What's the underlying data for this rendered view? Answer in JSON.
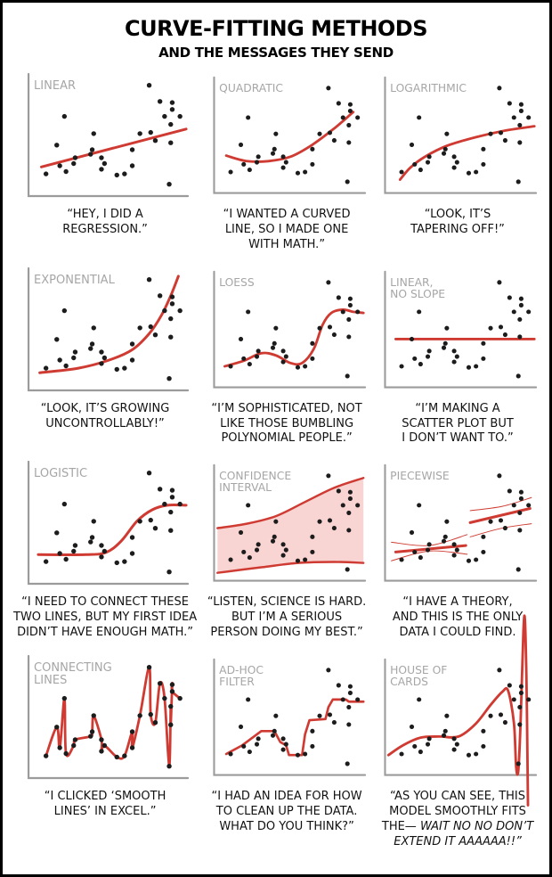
{
  "header": {
    "title": "CURVE-FITTING METHODS",
    "subtitle": "AND THE MESSAGES THEY SEND"
  },
  "colors": {
    "curve_red": "#cf3b32",
    "band_pink": "#f8d4d2",
    "dot_black": "#1c1c1c",
    "axis_gray": "#9b9b9b",
    "label_gray": "#a6a6a6",
    "text_black": "#111111"
  },
  "chart_data": {
    "type": "scatter",
    "x_range": [
      0,
      1
    ],
    "y_range": [
      0,
      1
    ],
    "grid": false,
    "shared_scatter_points": [
      [
        0.76,
        0.94
      ],
      [
        0.83,
        0.8
      ],
      [
        0.91,
        0.79
      ],
      [
        0.91,
        0.73
      ],
      [
        0.86,
        0.67
      ],
      [
        0.21,
        0.67
      ],
      [
        0.96,
        0.67
      ],
      [
        0.9,
        0.6
      ],
      [
        0.7,
        0.52
      ],
      [
        0.77,
        0.53
      ],
      [
        0.8,
        0.46
      ],
      [
        0.4,
        0.52
      ],
      [
        0.9,
        0.44
      ],
      [
        0.16,
        0.42
      ],
      [
        0.39,
        0.38
      ],
      [
        0.65,
        0.38
      ],
      [
        0.28,
        0.31
      ],
      [
        0.38,
        0.34
      ],
      [
        0.27,
        0.26
      ],
      [
        0.18,
        0.24
      ],
      [
        0.45,
        0.31
      ],
      [
        0.47,
        0.26
      ],
      [
        0.45,
        0.21
      ],
      [
        0.22,
        0.19
      ],
      [
        0.09,
        0.17
      ],
      [
        0.55,
        0.16
      ],
      [
        0.6,
        0.17
      ],
      [
        0.65,
        0.24
      ],
      [
        0.89,
        0.08
      ]
    ],
    "panels": [
      {
        "id": "linear",
        "label_lines": [
          "LINEAR"
        ],
        "caption": [
          [
            "“HEY, I DID A",
            ""
          ],
          [
            "REGRESSION.”",
            ""
          ]
        ],
        "curve": {
          "kind": "line",
          "points": [
            [
              0.06,
              0.23
            ],
            [
              1.0,
              0.56
            ]
          ]
        }
      },
      {
        "id": "quadratic",
        "label_lines": [
          "QUADRATIC"
        ],
        "caption": [
          [
            "“I WANTED A CURVED",
            ""
          ],
          [
            "LINE, SO I MADE ONE",
            ""
          ],
          [
            "WITH MATH.”",
            ""
          ]
        ],
        "curve": {
          "kind": "smooth",
          "points": [
            [
              0.06,
              0.32
            ],
            [
              0.2,
              0.27
            ],
            [
              0.35,
              0.27
            ],
            [
              0.5,
              0.31
            ],
            [
              0.65,
              0.42
            ],
            [
              0.8,
              0.57
            ],
            [
              0.93,
              0.72
            ]
          ]
        }
      },
      {
        "id": "logarithmic",
        "label_lines": [
          "LOGARITHMIC"
        ],
        "caption": [
          [
            "“LOOK, IT’S",
            ""
          ],
          [
            "TAPERING OFF!”",
            ""
          ]
        ],
        "curve": {
          "kind": "smooth",
          "points": [
            [
              0.08,
              0.1
            ],
            [
              0.15,
              0.21
            ],
            [
              0.25,
              0.31
            ],
            [
              0.4,
              0.41
            ],
            [
              0.6,
              0.49
            ],
            [
              0.8,
              0.55
            ],
            [
              1.0,
              0.59
            ]
          ]
        }
      },
      {
        "id": "exponential",
        "label_lines": [
          "EXPONENTIAL"
        ],
        "caption": [
          [
            "“LOOK, IT’S GROWING",
            ""
          ],
          [
            "UNCONTROLLABLY!”",
            ""
          ]
        ],
        "curve": {
          "kind": "smooth",
          "points": [
            [
              0.05,
              0.13
            ],
            [
              0.3,
              0.17
            ],
            [
              0.5,
              0.24
            ],
            [
              0.65,
              0.33
            ],
            [
              0.76,
              0.47
            ],
            [
              0.84,
              0.63
            ],
            [
              0.9,
              0.8
            ],
            [
              0.95,
              0.97
            ]
          ]
        }
      },
      {
        "id": "loess",
        "label_lines": [
          "LOESS"
        ],
        "caption": [
          [
            "“I’M SOPHISTICATED, NOT",
            ""
          ],
          [
            "LIKE THOSE BUMBLING",
            ""
          ],
          [
            "POLYNOMIAL PEOPLE.”",
            ""
          ]
        ],
        "curve": {
          "kind": "smooth",
          "points": [
            [
              0.05,
              0.17
            ],
            [
              0.18,
              0.22
            ],
            [
              0.3,
              0.29
            ],
            [
              0.4,
              0.27
            ],
            [
              0.5,
              0.2
            ],
            [
              0.58,
              0.2
            ],
            [
              0.66,
              0.33
            ],
            [
              0.72,
              0.55
            ],
            [
              0.78,
              0.66
            ],
            [
              0.86,
              0.69
            ],
            [
              0.93,
              0.67
            ],
            [
              1.0,
              0.66
            ]
          ]
        }
      },
      {
        "id": "linear-no-slope",
        "label_lines": [
          "LINEAR,",
          "NO SLOPE"
        ],
        "caption": [
          [
            "“I’M MAKING A",
            ""
          ],
          [
            "SCATTER PLOT BUT",
            ""
          ],
          [
            "I DON’T WANT TO.”",
            ""
          ]
        ],
        "curve": {
          "kind": "line",
          "points": [
            [
              0.05,
              0.42
            ],
            [
              1.0,
              0.42
            ]
          ]
        }
      },
      {
        "id": "logistic",
        "label_lines": [
          "LOGISTIC"
        ],
        "caption": [
          [
            "“I NEED TO CONNECT THESE",
            ""
          ],
          [
            "TWO LINES, BUT MY FIRST IDEA",
            ""
          ],
          [
            "DIDN’T HAVE ENOUGH MATH.”",
            ""
          ]
        ],
        "curve": {
          "kind": "smooth",
          "points": [
            [
              0.04,
              0.23
            ],
            [
              0.35,
              0.23
            ],
            [
              0.48,
              0.25
            ],
            [
              0.58,
              0.35
            ],
            [
              0.68,
              0.52
            ],
            [
              0.78,
              0.62
            ],
            [
              0.88,
              0.66
            ],
            [
              1.0,
              0.66
            ]
          ]
        }
      },
      {
        "id": "confidence-interval",
        "label_lines": [
          "CONFIDENCE",
          "INTERVAL"
        ],
        "caption": [
          [
            "“LISTEN, SCIENCE IS HARD.",
            ""
          ],
          [
            "BUT I’M A SERIOUS",
            ""
          ],
          [
            "PERSON DOING MY BEST.”",
            ""
          ]
        ],
        "curve": {
          "kind": "band",
          "upper": [
            [
              0.0,
              0.46
            ],
            [
              0.2,
              0.5
            ],
            [
              0.4,
              0.57
            ],
            [
              0.6,
              0.7
            ],
            [
              0.8,
              0.83
            ],
            [
              1.0,
              0.92
            ]
          ],
          "lower": [
            [
              0.0,
              0.05
            ],
            [
              0.3,
              0.1
            ],
            [
              0.55,
              0.14
            ],
            [
              0.8,
              0.15
            ],
            [
              1.0,
              0.14
            ]
          ]
        }
      },
      {
        "id": "piecewise",
        "label_lines": [
          "PIECEWISE"
        ],
        "caption": [
          [
            "“I HAVE A THEORY,",
            ""
          ],
          [
            "AND THIS IS THE ONLY",
            ""
          ],
          [
            "DATA I COULD FIND.",
            ""
          ]
        ],
        "curve": {
          "kind": "multi",
          "parts": [
            {
              "points": [
                [
                  0.05,
                  0.24
                ],
                [
                  0.53,
                  0.3
                ]
              ],
              "width": 3.2,
              "smooth": false
            },
            {
              "points": [
                [
                  0.56,
                  0.51
                ],
                [
                  0.97,
                  0.64
                ]
              ],
              "width": 3.2,
              "smooth": false
            },
            {
              "points": [
                [
                  0.02,
                  0.33
                ],
                [
                  0.28,
                  0.3
                ],
                [
                  0.54,
                  0.4
                ]
              ],
              "width": 1,
              "smooth": true
            },
            {
              "points": [
                [
                  0.02,
                  0.16
                ],
                [
                  0.28,
                  0.25
                ],
                [
                  0.54,
                  0.22
                ]
              ],
              "width": 1,
              "smooth": true
            },
            {
              "points": [
                [
                  0.56,
                  0.62
                ],
                [
                  0.78,
                  0.66
                ],
                [
                  0.98,
                  0.74
                ]
              ],
              "width": 1,
              "smooth": true
            },
            {
              "points": [
                [
                  0.56,
                  0.38
                ],
                [
                  0.78,
                  0.46
                ],
                [
                  0.98,
                  0.5
                ]
              ],
              "width": 1,
              "smooth": true
            }
          ]
        }
      },
      {
        "id": "connecting-lines",
        "label_lines": [
          "CONNECTING",
          "LINES"
        ],
        "caption": [
          [
            "“I CLICKED ‘SMOOTH",
            ""
          ],
          [
            "LINES’ IN EXCEL.”",
            ""
          ]
        ],
        "curve": {
          "kind": "through-data"
        }
      },
      {
        "id": "ad-hoc-filter",
        "label_lines": [
          "AD-HOC",
          "FILTER"
        ],
        "caption": [
          [
            "“I HAD AN IDEA FOR HOW",
            ""
          ],
          [
            "TO CLEAN UP THE DATA.",
            ""
          ],
          [
            "WHAT DO YOU THINK?”",
            ""
          ]
        ],
        "curve": {
          "kind": "multi",
          "parts": [
            {
              "points": [
                [
                  0.06,
                  0.17
                ],
                [
                  0.17,
                  0.25
                ],
                [
                  0.3,
                  0.38
                ],
                [
                  0.39,
                  0.38
                ],
                [
                  0.43,
                  0.28
                ],
                [
                  0.47,
                  0.25
                ],
                [
                  0.49,
                  0.16
                ],
                [
                  0.58,
                  0.16
                ],
                [
                  0.6,
                  0.35
                ],
                [
                  0.63,
                  0.48
                ],
                [
                  0.74,
                  0.49
                ],
                [
                  0.76,
                  0.6
                ],
                [
                  0.79,
                  0.67
                ],
                [
                  0.88,
                  0.67
                ],
                [
                  0.9,
                  0.65
                ],
                [
                  1.0,
                  0.65
                ]
              ],
              "width": 2.8,
              "smooth": false
            }
          ]
        }
      },
      {
        "id": "house-of-cards",
        "label_lines": [
          "HOUSE OF",
          "CARDS"
        ],
        "caption": [
          [
            "“AS YOU CAN SEE, THIS",
            ""
          ],
          [
            "MODEL SMOOTHLY FITS",
            ""
          ],
          [
            "THE— ",
            "WAIT NO NO DON’T"
          ],
          [
            "",
            "EXTEND IT AAAAAA!!”"
          ]
        ],
        "curve": {
          "kind": "smooth",
          "points": [
            [
              0.0,
              0.16
            ],
            [
              0.1,
              0.25
            ],
            [
              0.22,
              0.32
            ],
            [
              0.35,
              0.33
            ],
            [
              0.48,
              0.33
            ],
            [
              0.6,
              0.45
            ],
            [
              0.7,
              0.62
            ],
            [
              0.78,
              0.74
            ],
            [
              0.82,
              0.75
            ],
            [
              0.86,
              0.45
            ],
            [
              0.875,
              0.05
            ],
            [
              0.89,
              0.02
            ],
            [
              0.905,
              0.45
            ],
            [
              0.925,
              1.3
            ],
            [
              0.935,
              1.4
            ],
            [
              0.945,
              0.9
            ],
            [
              0.952,
              0.2
            ],
            [
              0.956,
              -0.3
            ]
          ]
        }
      }
    ]
  }
}
